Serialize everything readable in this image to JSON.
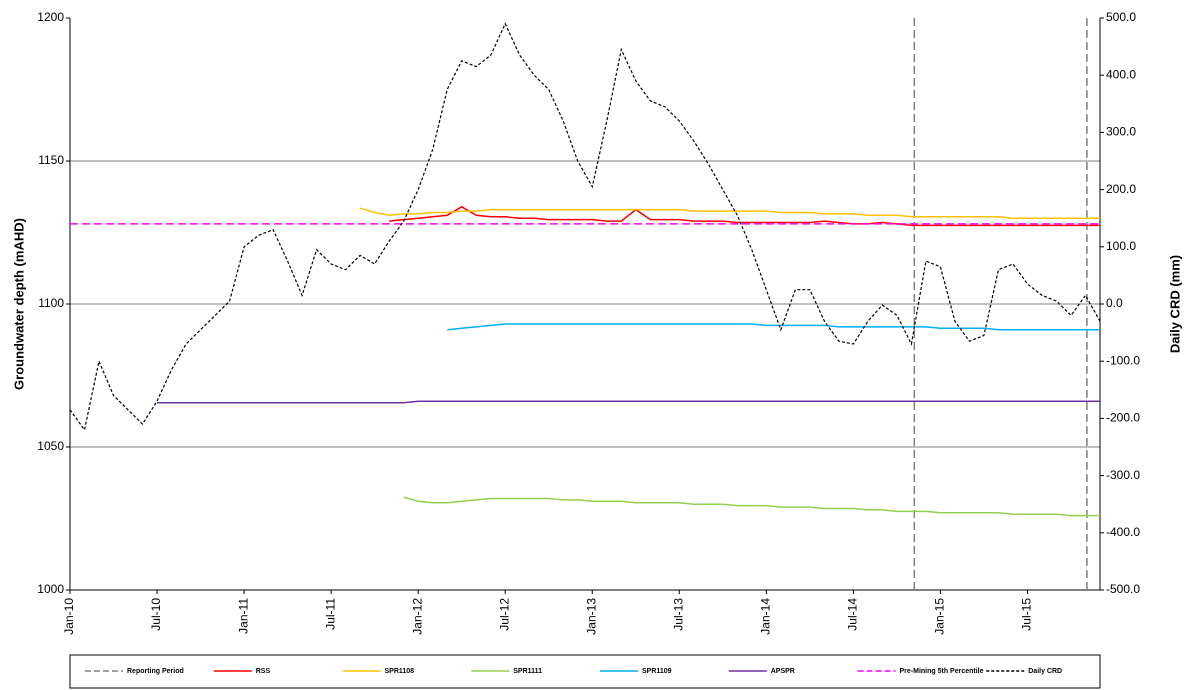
{
  "chart_data": {
    "type": "line",
    "y_label": "Groundwater depth (mAHD)",
    "y2_label": "Daily CRD (mm)",
    "categories": [
      "Jan-10",
      null,
      null,
      null,
      null,
      null,
      "Jul-10",
      null,
      null,
      null,
      null,
      null,
      "Jan-11",
      null,
      null,
      null,
      null,
      null,
      "Jul-11",
      null,
      null,
      null,
      null,
      null,
      "Jan-12",
      null,
      null,
      null,
      null,
      null,
      "Jul-12",
      null,
      null,
      null,
      null,
      null,
      "Jan-13",
      null,
      null,
      null,
      null,
      null,
      "Jul-13",
      null,
      null,
      null,
      null,
      null,
      "Jan-14",
      null,
      null,
      null,
      null,
      null,
      "Jul-14",
      null,
      null,
      null,
      null,
      null,
      "Jan-15",
      null,
      null,
      null,
      null,
      null,
      "Jul-15",
      null,
      null,
      null,
      null,
      null
    ],
    "ylim": [
      1000,
      1200
    ],
    "yticks": [
      1000,
      1050,
      1100,
      1150,
      1200
    ],
    "y2lim": [
      -500,
      500
    ],
    "y2ticks": [
      {
        "value": -500,
        "label": "-500.0"
      },
      {
        "value": -400,
        "label": "-400.0"
      },
      {
        "value": -300,
        "label": "-300.0"
      },
      {
        "value": -200,
        "label": "-200.0"
      },
      {
        "value": -100,
        "label": "-100.0"
      },
      {
        "value": 0,
        "label": "0.0"
      },
      {
        "value": 100,
        "label": "100.0"
      },
      {
        "value": 200,
        "label": "200.0"
      },
      {
        "value": 300,
        "label": "300.0"
      },
      {
        "value": 400,
        "label": "400.0"
      },
      {
        "value": 500,
        "label": "500.0"
      }
    ],
    "grid": true,
    "series": [
      {
        "name": "Reporting Period",
        "color": "#808080",
        "dash": true,
        "x": [
          58.2,
          70.1
        ]
      },
      {
        "name": "RSS",
        "color": "#ff0000",
        "values": [
          null,
          null,
          null,
          null,
          null,
          null,
          null,
          null,
          null,
          null,
          null,
          null,
          null,
          null,
          null,
          null,
          null,
          null,
          null,
          null,
          null,
          null,
          1129,
          1129.5,
          1130,
          1130.5,
          1131,
          1134,
          1131,
          1130.5,
          1130.5,
          1130,
          1130,
          1129.5,
          1129.5,
          1129.5,
          1129.5,
          1129,
          1129,
          1133,
          1129.5,
          1129.5,
          1129.5,
          1129,
          1129,
          1129,
          1128.5,
          1128.5,
          1128.5,
          1128.5,
          1128.5,
          1128.5,
          1129,
          1128.5,
          1128,
          1128,
          1128.5,
          1128,
          1127.5,
          1127.5,
          1127.5,
          1127.5,
          1127.5,
          1127.5,
          1127.5,
          1127.5,
          1127.5,
          1127.5,
          1127.5,
          1127.5,
          1127.5,
          1127.5
        ]
      },
      {
        "name": "SPR1108",
        "color": "#ffc000",
        "values": [
          null,
          null,
          null,
          null,
          null,
          null,
          null,
          null,
          null,
          null,
          null,
          null,
          null,
          null,
          null,
          null,
          null,
          null,
          null,
          null,
          1133.5,
          1132,
          1131,
          1131.5,
          1131.5,
          1132,
          1132,
          1132.5,
          1132.5,
          1133,
          1133,
          1133,
          1133,
          1133,
          1133,
          1133,
          1133,
          1133,
          1133,
          1133,
          1133,
          1133,
          1133,
          1132.5,
          1132.5,
          1132.5,
          1132.5,
          1132.5,
          1132.5,
          1132,
          1132,
          1132,
          1131.5,
          1131.5,
          1131.5,
          1131,
          1131,
          1131,
          1130.5,
          1130.5,
          1130.5,
          1130.5,
          1130.5,
          1130.5,
          1130.5,
          1130,
          1130,
          1130,
          1130,
          1130,
          1130,
          1130
        ]
      },
      {
        "name": "SPR1111",
        "color": "#92d050",
        "values": [
          null,
          null,
          null,
          null,
          null,
          null,
          null,
          null,
          null,
          null,
          null,
          null,
          null,
          null,
          null,
          null,
          null,
          null,
          null,
          null,
          null,
          null,
          null,
          1032.5,
          1031,
          1030.5,
          1030.5,
          1031,
          1031.5,
          1032,
          1032,
          1032,
          1032,
          1032,
          1031.5,
          1031.5,
          1031,
          1031,
          1031,
          1030.5,
          1030.5,
          1030.5,
          1030.5,
          1030,
          1030,
          1030,
          1029.5,
          1029.5,
          1029.5,
          1029,
          1029,
          1029,
          1028.5,
          1028.5,
          1028.5,
          1028,
          1028,
          1027.5,
          1027.5,
          1027.5,
          1027,
          1027,
          1027,
          1027,
          1027,
          1026.5,
          1026.5,
          1026.5,
          1026.5,
          1026,
          1026,
          1026
        ]
      },
      {
        "name": "SPR1109",
        "color": "#00b0f0",
        "values": [
          null,
          null,
          null,
          null,
          null,
          null,
          null,
          null,
          null,
          null,
          null,
          null,
          null,
          null,
          null,
          null,
          null,
          null,
          null,
          null,
          null,
          null,
          null,
          null,
          null,
          null,
          1091,
          1091.5,
          1092,
          1092.5,
          1093,
          1093,
          1093,
          1093,
          1093,
          1093,
          1093,
          1093,
          1093,
          1093,
          1093,
          1093,
          1093,
          1093,
          1093,
          1093,
          1093,
          1093,
          1092.5,
          1092.5,
          1092.5,
          1092.5,
          1092.5,
          1092,
          1092,
          1092,
          1092,
          1092,
          1092,
          1092,
          1091.5,
          1091.5,
          1091.5,
          1091.5,
          1091,
          1091,
          1091,
          1091,
          1091,
          1091,
          1091,
          1091
        ]
      },
      {
        "name": "APSPR",
        "color": "#7030a0",
        "values": [
          null,
          null,
          null,
          null,
          null,
          null,
          1065.5,
          1065.5,
          1065.5,
          1065.5,
          1065.5,
          1065.5,
          1065.5,
          1065.5,
          1065.5,
          1065.5,
          1065.5,
          1065.5,
          1065.5,
          1065.5,
          1065.5,
          1065.5,
          1065.5,
          1065.5,
          1066,
          1066,
          1066,
          1066,
          1066,
          1066,
          1066,
          1066,
          1066,
          1066,
          1066,
          1066,
          1066,
          1066,
          1066,
          1066,
          1066,
          1066,
          1066,
          1066,
          1066,
          1066,
          1066,
          1066,
          1066,
          1066,
          1066,
          1066,
          1066,
          1066,
          1066,
          1066,
          1066,
          1066,
          1066,
          1066,
          1066,
          1066,
          1066,
          1066,
          1066,
          1066,
          1066,
          1066,
          1066,
          1066,
          1066,
          1066
        ]
      },
      {
        "name": "Pre-Mining 5th Percentile",
        "color": "#ff00ff",
        "dash": true,
        "values": [
          1128,
          1128,
          1128,
          1128,
          1128,
          1128,
          1128,
          1128,
          1128,
          1128,
          1128,
          1128,
          1128,
          1128,
          1128,
          1128,
          1128,
          1128,
          1128,
          1128,
          1128,
          1128,
          1128,
          1128,
          1128,
          1128,
          1128,
          1128,
          1128,
          1128,
          1128,
          1128,
          1128,
          1128,
          1128,
          1128,
          1128,
          1128,
          1128,
          1128,
          1128,
          1128,
          1128,
          1128,
          1128,
          1128,
          1128,
          1128,
          1128,
          1128,
          1128,
          1128,
          1128,
          1128,
          1128,
          1128,
          1128,
          1128,
          1128,
          1128,
          1128,
          1128,
          1128,
          1128,
          1128,
          1128,
          1128,
          1128,
          1128,
          1128,
          1128,
          1128
        ]
      },
      {
        "name": "Daily CRD",
        "color": "#000000",
        "dash": true,
        "axis": "y2",
        "values": [
          -185,
          -220,
          -100,
          -160,
          -185,
          -210,
          -170,
          -115,
          -70,
          -45,
          -20,
          5,
          100,
          120,
          130,
          75,
          15,
          95,
          70,
          60,
          85,
          70,
          110,
          145,
          200,
          270,
          375,
          425,
          415,
          435,
          490,
          435,
          400,
          375,
          320,
          250,
          205,
          320,
          445,
          390,
          355,
          345,
          320,
          285,
          245,
          200,
          155,
          95,
          25,
          -45,
          25,
          25,
          -30,
          -65,
          -70,
          -30,
          -2,
          -20,
          -70,
          75,
          65,
          -30,
          -65,
          -55,
          60,
          70,
          35,
          15,
          5,
          -20,
          15,
          -30
        ]
      }
    ]
  }
}
